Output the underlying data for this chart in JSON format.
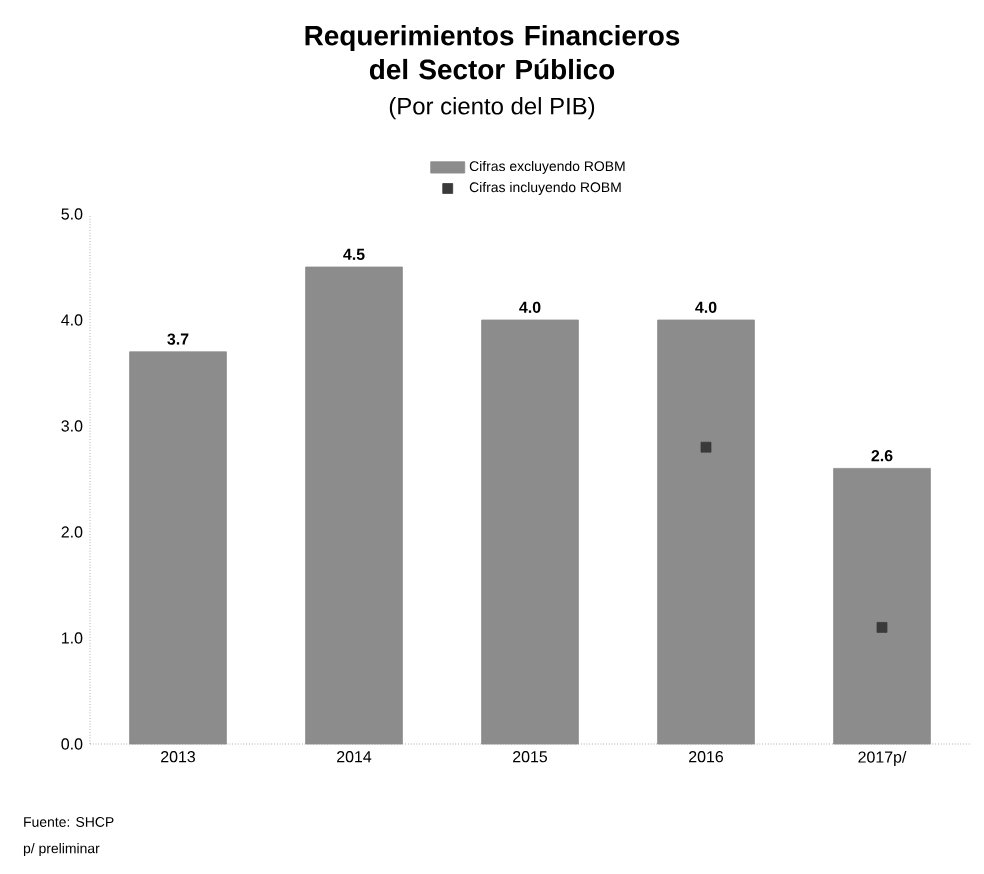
{
  "chart_data": {
    "type": "bar",
    "title": "Requerimientos Financieros del Sector Público",
    "subtitle": "(Por ciento del PIB)",
    "categories": [
      "2013",
      "2014",
      "2015",
      "2016",
      "2017p/"
    ],
    "series": [
      {
        "name": "Cifras excluyendo ROBM",
        "color": "#8c8c8c",
        "values": [
          3.7,
          4.5,
          4.0,
          4.0,
          2.6
        ],
        "value_labels": [
          "3.7",
          "4.5",
          "4.0",
          "4.0",
          "2.6"
        ]
      },
      {
        "name": "Cifras incluyendo ROBM",
        "type": "scatter",
        "marker": "square",
        "color": "#3a3a3a",
        "values": [
          null,
          null,
          null,
          2.8,
          1.1
        ]
      }
    ],
    "ylim": [
      0,
      5
    ],
    "yticks": [
      {
        "value": 0,
        "label": "0.0"
      },
      {
        "value": 1,
        "label": "1.0"
      },
      {
        "value": 2,
        "label": "2.0"
      },
      {
        "value": 3,
        "label": "3.0"
      },
      {
        "value": 4,
        "label": "4.0"
      },
      {
        "value": 5,
        "label": "5.0"
      }
    ],
    "legend": "top",
    "annotations": [
      "Fuente: SHCP",
      "p/ preliminar"
    ]
  }
}
